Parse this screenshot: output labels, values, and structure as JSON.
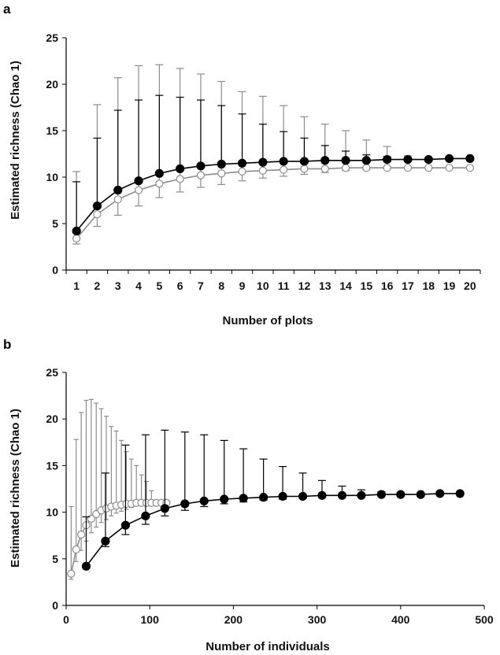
{
  "colors": {
    "filled": "#000000",
    "open_stroke": "#8c8c8c",
    "open_fill": "#ffffff",
    "axis": "#000000"
  },
  "chart_data": [
    {
      "panel_label": "a",
      "type": "line",
      "xlabel": "Number of plots",
      "ylabel": "Estimated richness (Chao 1)",
      "ylim": [
        0,
        25
      ],
      "yticks": [
        0,
        5,
        10,
        15,
        20,
        25
      ],
      "x_categories": [
        1,
        2,
        3,
        4,
        5,
        6,
        7,
        8,
        9,
        10,
        11,
        12,
        13,
        14,
        15,
        16,
        17,
        18,
        19,
        20
      ],
      "grid": false,
      "legend": "none",
      "series": [
        {
          "marker": "filled-circle",
          "x": [
            1,
            2,
            3,
            4,
            5,
            6,
            7,
            8,
            9,
            10,
            11,
            12,
            13,
            14,
            15,
            16,
            17,
            18,
            19,
            20
          ],
          "y": [
            4.2,
            6.9,
            8.6,
            9.6,
            10.4,
            10.9,
            11.2,
            11.4,
            11.5,
            11.6,
            11.7,
            11.7,
            11.8,
            11.8,
            11.8,
            11.9,
            11.9,
            11.9,
            12.0,
            12.0
          ],
          "err_up": [
            9.5,
            14.2,
            17.2,
            18.3,
            18.8,
            18.6,
            18.3,
            17.7,
            16.8,
            15.7,
            14.9,
            14.2,
            13.4,
            12.8,
            12.4,
            12.2,
            12.0,
            12.0,
            12.0,
            12.0
          ],
          "err_down": [
            4.2,
            6.9,
            8.6,
            9.6,
            10.4,
            10.9,
            11.2,
            11.4,
            11.5,
            11.6,
            11.7,
            11.7,
            11.8,
            11.8,
            11.8,
            11.9,
            11.9,
            11.9,
            12.0,
            12.0
          ]
        },
        {
          "marker": "open-circle",
          "x": [
            1,
            2,
            3,
            4,
            5,
            6,
            7,
            8,
            9,
            10,
            11,
            12,
            13,
            14,
            15,
            16,
            17,
            18,
            19,
            20
          ],
          "y": [
            3.4,
            6.0,
            7.6,
            8.6,
            9.3,
            9.8,
            10.2,
            10.4,
            10.6,
            10.7,
            10.8,
            10.9,
            10.9,
            11.0,
            11.0,
            11.0,
            11.0,
            11.0,
            11.0,
            11.0
          ],
          "err_up": [
            10.6,
            17.8,
            20.7,
            22.0,
            22.1,
            21.7,
            21.1,
            20.3,
            19.2,
            18.7,
            17.7,
            16.5,
            15.7,
            15.0,
            14.0,
            13.3,
            12.3,
            11.0,
            11.0,
            11.0
          ],
          "err_down": [
            2.8,
            4.7,
            5.9,
            6.9,
            7.8,
            8.4,
            8.9,
            9.2,
            9.6,
            9.9,
            10.1,
            10.3,
            10.5,
            10.7,
            10.8,
            10.9,
            11.0,
            11.0,
            11.0,
            11.0
          ]
        }
      ]
    },
    {
      "panel_label": "b",
      "type": "line",
      "xlabel": "Number of individuals",
      "ylabel": "Estimated richness (Chao 1)",
      "xlim": [
        0,
        500
      ],
      "xticks": [
        0,
        100,
        200,
        300,
        400,
        500
      ],
      "ylim": [
        0,
        25
      ],
      "yticks": [
        0,
        5,
        10,
        15,
        20,
        25
      ],
      "grid": false,
      "legend": "none",
      "series": [
        {
          "marker": "filled-circle",
          "x": [
            24,
            47,
            71,
            95,
            118,
            142,
            165,
            189,
            212,
            236,
            259,
            283,
            306,
            330,
            353,
            377,
            400,
            424,
            447,
            471
          ],
          "y": [
            4.2,
            6.9,
            8.6,
            9.6,
            10.4,
            10.9,
            11.2,
            11.4,
            11.5,
            11.6,
            11.7,
            11.7,
            11.8,
            11.8,
            11.8,
            11.9,
            11.9,
            11.9,
            12.0,
            12.0
          ],
          "err_up": [
            9.5,
            14.2,
            17.2,
            18.3,
            18.8,
            18.6,
            18.3,
            17.7,
            16.8,
            15.7,
            14.9,
            14.2,
            13.4,
            12.8,
            12.4,
            12.2,
            12.0,
            12.0,
            12.0,
            12.0
          ],
          "err_down": [
            4.2,
            6.3,
            7.6,
            8.7,
            9.6,
            10.2,
            10.6,
            10.9,
            11.1,
            11.3,
            11.4,
            11.5,
            11.6,
            11.7,
            11.7,
            11.8,
            11.9,
            11.9,
            12.0,
            12.0
          ]
        },
        {
          "marker": "open-circle",
          "x": [
            6,
            12,
            18,
            24,
            30,
            36,
            42,
            48,
            54,
            60,
            66,
            72,
            78,
            84,
            90,
            96,
            102,
            108,
            114,
            120
          ],
          "y": [
            3.4,
            6.0,
            7.6,
            8.6,
            9.3,
            9.8,
            10.2,
            10.4,
            10.6,
            10.7,
            10.8,
            10.9,
            10.9,
            11.0,
            11.0,
            11.0,
            11.0,
            11.0,
            11.0,
            11.0
          ],
          "err_up": [
            10.6,
            17.8,
            20.7,
            22.0,
            22.1,
            21.7,
            21.1,
            20.3,
            19.2,
            18.7,
            17.7,
            16.5,
            15.7,
            15.0,
            14.0,
            13.3,
            12.3,
            11.0,
            11.0,
            11.0
          ],
          "err_down": [
            2.8,
            4.7,
            5.9,
            6.9,
            7.8,
            8.4,
            8.9,
            9.2,
            9.6,
            9.9,
            10.1,
            10.3,
            10.5,
            10.7,
            10.8,
            10.9,
            11.0,
            11.0,
            11.0,
            11.0
          ]
        }
      ]
    }
  ]
}
